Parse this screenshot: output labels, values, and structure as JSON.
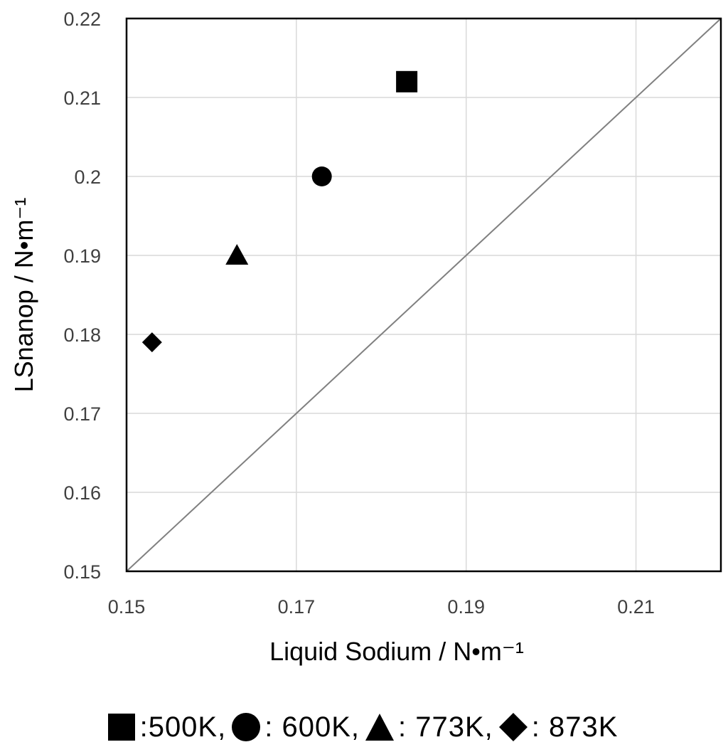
{
  "chart_data": {
    "type": "scatter",
    "xlabel": "Liquid Sodium / N•m⁻¹",
    "ylabel": "LSnanop / N•m⁻¹",
    "xlim": [
      0.15,
      0.22
    ],
    "ylim": [
      0.15,
      0.22
    ],
    "x_ticks": [
      "0.15",
      "0.17",
      "0.19",
      "0.21"
    ],
    "y_ticks": [
      "0.15",
      "0.16",
      "0.17",
      "0.18",
      "0.19",
      "0.2",
      "0.21",
      "0.22"
    ],
    "x_tick_values": [
      0.15,
      0.17,
      0.19,
      0.21
    ],
    "y_tick_values": [
      0.15,
      0.16,
      0.17,
      0.18,
      0.19,
      0.2,
      0.21,
      0.22
    ],
    "grid": true,
    "reference_line": {
      "x": [
        0.15,
        0.22
      ],
      "y": [
        0.15,
        0.22
      ],
      "color": "#808080"
    },
    "series": [
      {
        "name": "500K",
        "marker": "square",
        "x": [
          0.183
        ],
        "y": [
          0.212
        ],
        "color": "#000000"
      },
      {
        "name": "600K",
        "marker": "circle",
        "x": [
          0.173
        ],
        "y": [
          0.2
        ],
        "color": "#000000"
      },
      {
        "name": "773K",
        "marker": "triangle",
        "x": [
          0.163
        ],
        "y": [
          0.19
        ],
        "color": "#000000"
      },
      {
        "name": "873K",
        "marker": "diamond",
        "x": [
          0.153
        ],
        "y": [
          0.179
        ],
        "color": "#000000"
      }
    ],
    "legend_placement": "bottom"
  },
  "legend": {
    "items": [
      {
        "marker": "square",
        "text": ":500K,"
      },
      {
        "marker": "circle",
        "text": ": 600K,"
      },
      {
        "marker": "triangle",
        "text": ": 773K,"
      },
      {
        "marker": "diamond",
        "text": ": 873K"
      }
    ]
  }
}
